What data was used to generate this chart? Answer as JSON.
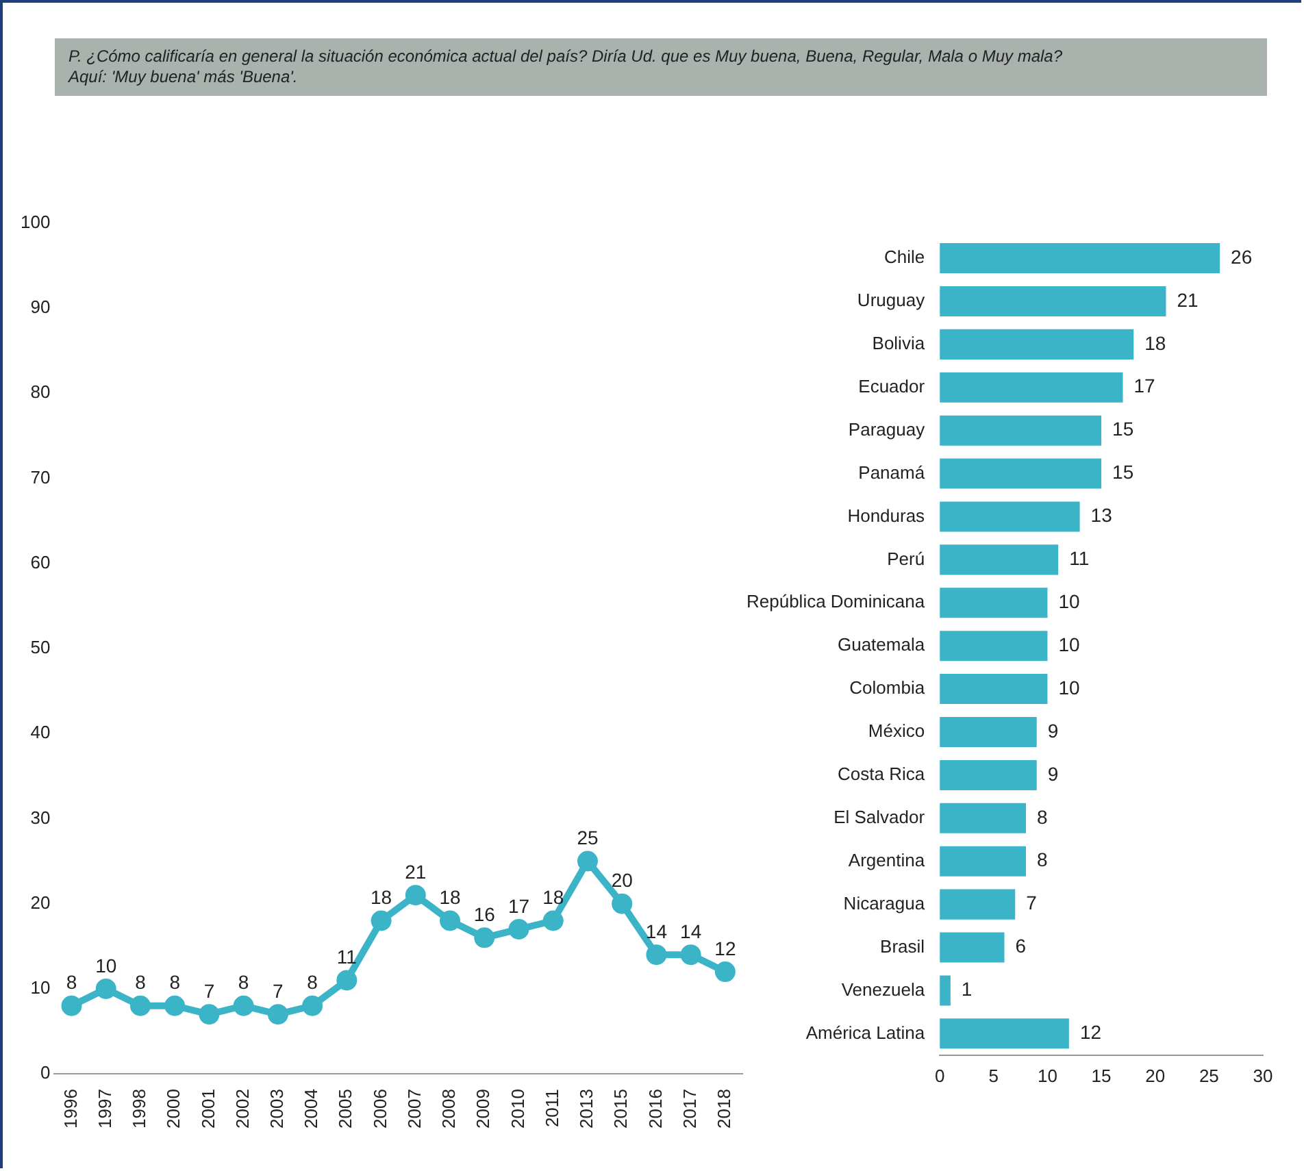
{
  "chart_data": [
    {
      "type": "line",
      "title": "P. ¿Cómo calificaría en general la situación económica actual del país? Diría Ud. que es Muy buena, Buena, Regular, Mala o Muy mala?",
      "subtitle": "Aquí: 'Muy buena' más 'Buena'.",
      "categories": [
        "1996",
        "1997",
        "1998",
        "2000",
        "2001",
        "2002",
        "2003",
        "2004",
        "2005",
        "2006",
        "2007",
        "2008",
        "2009",
        "2010",
        "2011",
        "2013",
        "2015",
        "2016",
        "2017",
        "2018"
      ],
      "series": [
        {
          "color": "#3cb4c8",
          "values": [
            8,
            10,
            8,
            8,
            7,
            8,
            7,
            8,
            11,
            18,
            21,
            18,
            16,
            17,
            18,
            25,
            20,
            14,
            14,
            12
          ]
        }
      ],
      "ylim": [
        0,
        100
      ],
      "yticks": [
        0,
        10,
        20,
        30,
        40,
        50,
        60,
        70,
        80,
        90,
        100
      ],
      "grid": false,
      "marker": "circle",
      "line_style": "solid",
      "data_labels": true
    },
    {
      "type": "bar",
      "orientation": "horizontal",
      "categories": [
        "Chile",
        "Uruguay",
        "Bolivia",
        "Ecuador",
        "Paraguay",
        "Panamá",
        "Honduras",
        "Perú",
        "República Dominicana",
        "Guatemala",
        "Colombia",
        "México",
        "Costa Rica",
        "El Salvador",
        "Argentina",
        "Nicaragua",
        "Brasil",
        "Venezuela",
        "América Latina"
      ],
      "series": [
        {
          "color": "#3cb4c8",
          "values": [
            26,
            21,
            18,
            17,
            15,
            15,
            13,
            11,
            10,
            10,
            10,
            9,
            9,
            8,
            8,
            7,
            6,
            1,
            12
          ]
        }
      ],
      "xlim": [
        0,
        30
      ],
      "xticks": [
        0,
        5,
        10,
        15,
        20,
        25,
        30
      ],
      "grid": false,
      "data_labels": true
    }
  ]
}
